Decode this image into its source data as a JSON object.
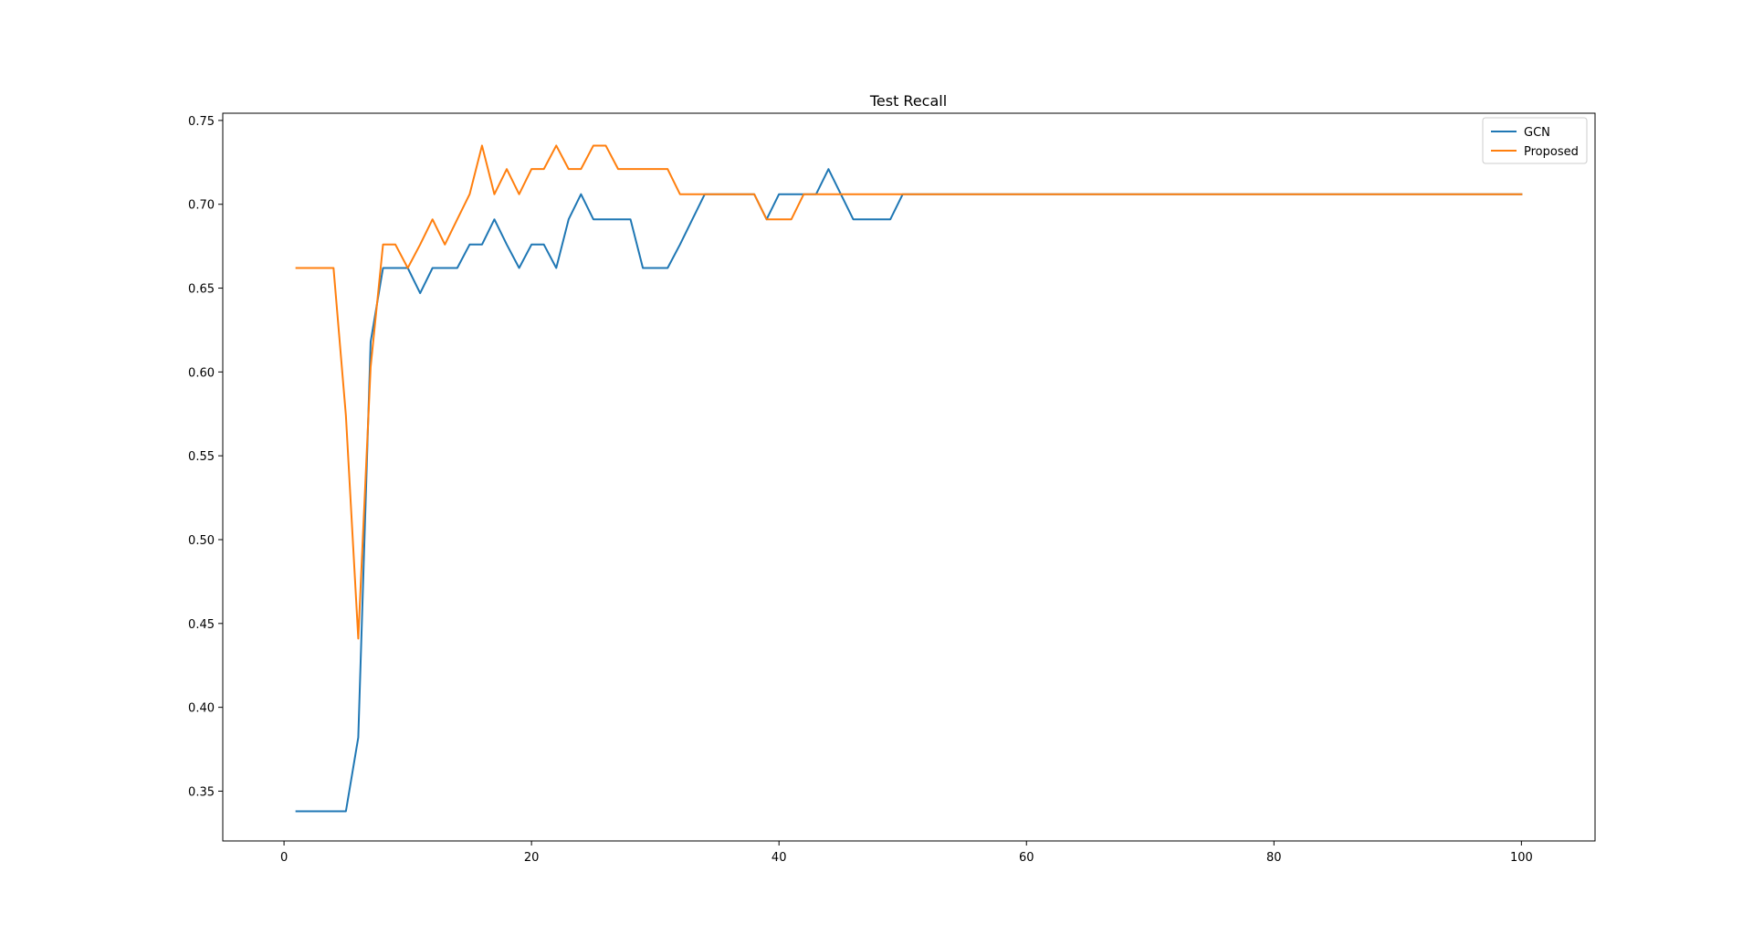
{
  "chart_data": {
    "type": "line",
    "title": "Test Recall",
    "xlabel": "",
    "ylabel": "",
    "xlim": [
      -4.95,
      105.95
    ],
    "ylim": [
      0.3203,
      0.7543
    ],
    "xticks": [
      0,
      20,
      40,
      60,
      80,
      100
    ],
    "yticks": [
      0.35,
      0.4,
      0.45,
      0.5,
      0.55,
      0.6,
      0.65,
      0.7,
      0.75
    ],
    "xtick_labels": [
      "0",
      "20",
      "40",
      "60",
      "80",
      "100"
    ],
    "ytick_labels": [
      "0.35",
      "0.40",
      "0.45",
      "0.50",
      "0.55",
      "0.60",
      "0.65",
      "0.70",
      "0.75"
    ],
    "grid": false,
    "legend_position": "top-right",
    "x": [
      1,
      2,
      3,
      4,
      5,
      6,
      7,
      8,
      9,
      10,
      11,
      12,
      13,
      14,
      15,
      16,
      17,
      18,
      19,
      20,
      21,
      22,
      23,
      24,
      25,
      26,
      27,
      28,
      29,
      30,
      31,
      32,
      33,
      34,
      35,
      36,
      37,
      38,
      39,
      40,
      41,
      42,
      43,
      44,
      45,
      46,
      47,
      48,
      49,
      50,
      51,
      52,
      53,
      54,
      55,
      56,
      57,
      58,
      59,
      60,
      61,
      62,
      63,
      64,
      65,
      66,
      67,
      68,
      69,
      70,
      71,
      72,
      73,
      74,
      75,
      76,
      77,
      78,
      79,
      80,
      81,
      82,
      83,
      84,
      85,
      86,
      87,
      88,
      89,
      90,
      91,
      92,
      93,
      94,
      95,
      96,
      97,
      98,
      99,
      100
    ],
    "series": [
      {
        "name": "GCN",
        "color": "#1f77b4",
        "values": [
          0.338,
          0.338,
          0.338,
          0.338,
          0.338,
          0.382,
          0.618,
          0.662,
          0.662,
          0.662,
          0.647,
          0.662,
          0.662,
          0.662,
          0.676,
          0.676,
          0.691,
          0.676,
          0.662,
          0.676,
          0.676,
          0.662,
          0.691,
          0.706,
          0.691,
          0.691,
          0.691,
          0.691,
          0.662,
          0.662,
          0.662,
          0.676,
          0.691,
          0.706,
          0.706,
          0.706,
          0.706,
          0.706,
          0.691,
          0.706,
          0.706,
          0.706,
          0.706,
          0.721,
          0.706,
          0.691,
          0.691,
          0.691,
          0.691,
          0.706,
          0.706,
          0.706,
          0.706,
          0.706,
          0.706,
          0.706,
          0.706,
          0.706,
          0.706,
          0.706,
          0.706,
          0.706,
          0.706,
          0.706,
          0.706,
          0.706,
          0.706,
          0.706,
          0.706,
          0.706,
          0.706,
          0.706,
          0.706,
          0.706,
          0.706,
          0.706,
          0.706,
          0.706,
          0.706,
          0.706,
          0.706,
          0.706,
          0.706,
          0.706,
          0.706,
          0.706,
          0.706,
          0.706,
          0.706,
          0.706,
          0.706,
          0.706,
          0.706,
          0.706,
          0.706,
          0.706,
          0.706,
          0.706,
          0.706,
          0.706
        ]
      },
      {
        "name": "Proposed",
        "color": "#ff7f0e",
        "values": [
          0.662,
          0.662,
          0.662,
          0.662,
          0.574,
          0.441,
          0.603,
          0.676,
          0.676,
          0.662,
          0.676,
          0.691,
          0.676,
          0.691,
          0.706,
          0.735,
          0.706,
          0.721,
          0.706,
          0.721,
          0.721,
          0.735,
          0.721,
          0.721,
          0.735,
          0.735,
          0.721,
          0.721,
          0.721,
          0.721,
          0.721,
          0.706,
          0.706,
          0.706,
          0.706,
          0.706,
          0.706,
          0.706,
          0.691,
          0.691,
          0.691,
          0.706,
          0.706,
          0.706,
          0.706,
          0.706,
          0.706,
          0.706,
          0.706,
          0.706,
          0.706,
          0.706,
          0.706,
          0.706,
          0.706,
          0.706,
          0.706,
          0.706,
          0.706,
          0.706,
          0.706,
          0.706,
          0.706,
          0.706,
          0.706,
          0.706,
          0.706,
          0.706,
          0.706,
          0.706,
          0.706,
          0.706,
          0.706,
          0.706,
          0.706,
          0.706,
          0.706,
          0.706,
          0.706,
          0.706,
          0.706,
          0.706,
          0.706,
          0.706,
          0.706,
          0.706,
          0.706,
          0.706,
          0.706,
          0.706,
          0.706,
          0.706,
          0.706,
          0.706,
          0.706,
          0.706,
          0.706,
          0.706,
          0.706,
          0.706
        ]
      }
    ]
  }
}
